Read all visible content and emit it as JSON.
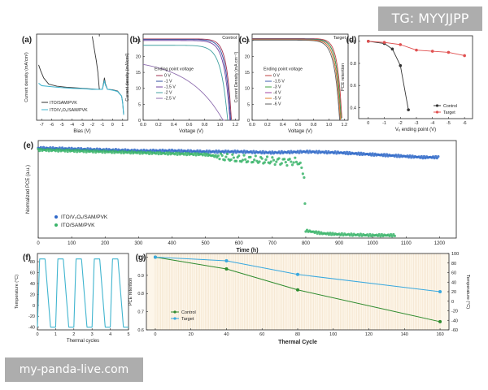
{
  "watermark": {
    "top": "TG: MYYJJPP",
    "bottom": "my-panda-live.com"
  },
  "colors": {
    "target": "#2f68c8",
    "control": "#3ab46a",
    "green_dark": "#2e8b2e",
    "blue_light": "#39a8df",
    "red": "#e05050",
    "dark": "#333333",
    "cycle": "#41b5cf"
  },
  "chart_data": [
    {
      "panel": "(a)",
      "type": "line",
      "xlabel": "Bias (V)",
      "ylabel": "Current density (mA/cm²)",
      "xticks": [
        "-7",
        "-6",
        "-5",
        "-4",
        "-3",
        "-2",
        "-1",
        "0",
        "1"
      ],
      "xlim": [
        -7.5,
        1.5
      ],
      "legend": [
        "ITO/SAM/PVK",
        "ITO/V₂Oₓ/SAM/PVK"
      ],
      "series": [
        {
          "name": "ITO/SAM/PVK",
          "points": [
            [
              -7.3,
              1.6
            ],
            [
              -7.1,
              1.1
            ],
            [
              -6.8,
              0.6
            ],
            [
              -6.3,
              0.28
            ],
            [
              -5.5,
              0.2
            ],
            [
              -4.5,
              0.16
            ],
            [
              -3.5,
              0.14
            ],
            [
              -2.5,
              0.12
            ],
            [
              -1.5,
              0.1
            ],
            [
              -1.0,
              0.1
            ],
            [
              -0.8,
              0.6
            ],
            [
              -0.7,
              0.3
            ],
            [
              -0.5,
              0.1
            ],
            [
              0.0,
              0.09
            ],
            [
              0.5,
              0.06
            ],
            [
              0.9,
              0.0
            ],
            [
              1.0,
              -0.6
            ],
            [
              1.1,
              -1.8
            ]
          ]
        },
        {
          "name": "ITO/V₂Oₓ/SAM/PVK",
          "points": [
            [
              -7.3,
              0.32
            ],
            [
              -7.0,
              0.22
            ],
            [
              -6.0,
              0.18
            ],
            [
              -5.0,
              0.15
            ],
            [
              -4.0,
              0.13
            ],
            [
              -3.0,
              0.12
            ],
            [
              -2.0,
              0.1
            ],
            [
              -1.0,
              0.1
            ],
            [
              -0.8,
              0.45
            ],
            [
              -0.7,
              0.25
            ],
            [
              -0.5,
              0.1
            ],
            [
              0.0,
              0.08
            ],
            [
              0.5,
              0.05
            ],
            [
              0.9,
              0.0
            ],
            [
              1.0,
              -0.6
            ],
            [
              1.1,
              -1.8
            ]
          ]
        },
        {
          "name": "",
          "points": [
            [
              -2.0,
              5.2
            ],
            [
              -1.75,
              3.0
            ],
            [
              -1.6,
              2.0
            ],
            [
              -1.45,
              1.0
            ],
            [
              -1.35,
              0.3
            ],
            [
              -1.3,
              0.1
            ]
          ]
        }
      ]
    },
    {
      "panel": "(b)",
      "type": "line",
      "title": "Control",
      "xlabel": "Voltage (V)",
      "ylabel": "Current density (mA/cm²)",
      "xticks": [
        "0.0",
        "0.2",
        "0.4",
        "0.6",
        "0.8",
        "1.0",
        "1.2"
      ],
      "yticks": [
        "0",
        "5",
        "10",
        "15",
        "20",
        "25"
      ],
      "xlim": [
        0,
        1.25
      ],
      "ylim": [
        0,
        27
      ],
      "legend_title": "Ending point voltage",
      "legend": [
        "0 V",
        "-1 V",
        "-1.5 V",
        "-2 V",
        "-2.5 V"
      ],
      "series": [
        {
          "name": "0 V",
          "color": "#a03050",
          "jsc": 25.5,
          "voc": 1.15,
          "sharp": 16
        },
        {
          "name": "-1 V",
          "color": "#3050a0",
          "jsc": 25.3,
          "voc": 1.14,
          "sharp": 15
        },
        {
          "name": "-1.5 V",
          "color": "#7040a0",
          "jsc": 25.0,
          "voc": 1.13,
          "sharp": 14
        },
        {
          "name": "-2 V",
          "color": "#40a0a0",
          "jsc": 23.5,
          "voc": 1.1,
          "sharp": 12
        },
        {
          "name": "-2.5 V",
          "color": "#9070b0",
          "jsc": 17.5,
          "voc": 1.04,
          "sharp": 2.2
        }
      ]
    },
    {
      "panel": "(c)",
      "type": "line",
      "title": "Target",
      "xlabel": "Voltage (V)",
      "ylabel": "Current Density (mA cm⁻²)",
      "xticks": [
        "0.0",
        "0.2",
        "0.4",
        "0.6",
        "0.8",
        "1.0",
        "1.2"
      ],
      "yticks": [
        "0",
        "5",
        "10",
        "15",
        "20",
        "25"
      ],
      "xlim": [
        0,
        1.25
      ],
      "ylim": [
        0,
        27
      ],
      "legend_title": "Ending point voltage",
      "legend": [
        "0 V",
        "-1.5 V",
        "-3 V",
        "-4 V",
        "-5 V",
        "-6 V"
      ],
      "series": [
        {
          "name": "0 V",
          "color": "#c04040",
          "jsc": 25.6,
          "voc": 1.17,
          "sharp": 18
        },
        {
          "name": "-1.5 V",
          "color": "#4060b0",
          "jsc": 25.5,
          "voc": 1.16,
          "sharp": 17
        },
        {
          "name": "-3 V",
          "color": "#40a040",
          "jsc": 25.4,
          "voc": 1.16,
          "sharp": 17
        },
        {
          "name": "-4 V",
          "color": "#a040a0",
          "jsc": 25.3,
          "voc": 1.15,
          "sharp": 16
        },
        {
          "name": "-5 V",
          "color": "#e08030",
          "jsc": 25.2,
          "voc": 1.15,
          "sharp": 16
        },
        {
          "name": "-6 V",
          "color": "#606060",
          "jsc": 25.1,
          "voc": 1.14,
          "sharp": 15
        }
      ]
    },
    {
      "panel": "(d)",
      "type": "line",
      "xlabel": "Vₑ ending point (V)",
      "ylabel": "PCE retention",
      "xticks": [
        "0",
        "-1",
        "-2",
        "-3",
        "-4",
        "-5",
        "-6"
      ],
      "yticks": [
        "0.4",
        "0.6",
        "0.8",
        "1.0"
      ],
      "xlim": [
        0.6,
        -6.5
      ],
      "ylim": [
        0.3,
        1.05
      ],
      "legend": [
        "Control",
        "Target"
      ],
      "series": [
        {
          "name": "Control",
          "color": "#333333",
          "x": [
            0,
            -1,
            -1.5,
            -2,
            -2.5
          ],
          "y": [
            1.0,
            0.98,
            0.93,
            0.78,
            0.38
          ]
        },
        {
          "name": "Target",
          "color": "#e05050",
          "x": [
            0,
            -1,
            -2,
            -3,
            -4,
            -5,
            -6
          ],
          "y": [
            1.0,
            0.99,
            0.97,
            0.92,
            0.91,
            0.9,
            0.87
          ]
        }
      ]
    },
    {
      "panel": "(e)",
      "type": "scatter",
      "xlabel": "Time (h)",
      "ylabel": "Normalized PCE (a.u.)",
      "xticks": [
        "0",
        "100",
        "200",
        "300",
        "400",
        "500",
        "600",
        "700",
        "800",
        "900",
        "1000",
        "1100",
        "1200"
      ],
      "xlim": [
        0,
        1250
      ],
      "ylim": [
        0,
        1.05
      ],
      "legend": [
        "ITO/V₂Oₓ/SAM/PVK",
        "ITO/SAM/PVK"
      ],
      "series": [
        {
          "name": "ITO/V₂Oₓ/SAM/PVK",
          "color": "#2f68c8",
          "points": [
            [
              0,
              0.97
            ],
            [
              100,
              0.96
            ],
            [
              200,
              0.95
            ],
            [
              300,
              0.94
            ],
            [
              400,
              0.94
            ],
            [
              500,
              0.93
            ],
            [
              600,
              0.93
            ],
            [
              700,
              0.92
            ],
            [
              800,
              0.93
            ],
            [
              900,
              0.92
            ],
            [
              950,
              0.91
            ],
            [
              1000,
              0.9
            ],
            [
              1050,
              0.89
            ],
            [
              1100,
              0.88
            ],
            [
              1150,
              0.87
            ],
            [
              1200,
              0.87
            ]
          ]
        },
        {
          "name": "ITO/SAM/PVK",
          "color": "#3ab46a",
          "points": [
            [
              0,
              0.95
            ],
            [
              100,
              0.94
            ],
            [
              200,
              0.93
            ],
            [
              300,
              0.92
            ],
            [
              400,
              0.91
            ],
            [
              500,
              0.9
            ],
            [
              550,
              0.87
            ],
            [
              600,
              0.85
            ],
            [
              650,
              0.84
            ],
            [
              700,
              0.83
            ],
            [
              780,
              0.82
            ],
            [
              795,
              0.65
            ],
            [
              800,
              0.08
            ],
            [
              850,
              0.05
            ],
            [
              900,
              0.04
            ],
            [
              1000,
              0.03
            ],
            [
              1070,
              0.03
            ]
          ]
        }
      ]
    },
    {
      "panel": "(f)",
      "type": "line",
      "xlabel": "Thermal cycles",
      "ylabel": "Temperature (°C)",
      "xticks": [
        "0",
        "1",
        "2",
        "3",
        "4",
        "5"
      ],
      "yticks": [
        "-40",
        "-20",
        "0",
        "20",
        "40",
        "60",
        "80"
      ],
      "xlim": [
        0,
        5
      ],
      "ylim": [
        -45,
        95
      ],
      "series": [
        {
          "name": "",
          "color": "#41b5cf",
          "cycles": 5,
          "min": -40,
          "max": 85
        }
      ]
    },
    {
      "panel": "(g)",
      "type": "line",
      "xlabel": "Thermal Cycle",
      "ylabel": "PCE retention",
      "y2label": "Temperature (°C)",
      "xticks": [
        "0",
        "20",
        "40",
        "60",
        "80",
        "100",
        "120",
        "140",
        "160"
      ],
      "yticks": [
        "0.6",
        "0.7",
        "0.8",
        "0.9",
        "1.0"
      ],
      "y2ticks": [
        "-60",
        "-40",
        "-20",
        "0",
        "20",
        "40",
        "60",
        "80",
        "100"
      ],
      "xlim": [
        -5,
        165
      ],
      "ylim": [
        0.6,
        1.02
      ],
      "y2lim": [
        -60,
        100
      ],
      "legend": [
        "Control",
        "Target"
      ],
      "series": [
        {
          "name": "Control",
          "color": "#2e8b2e",
          "x": [
            0,
            40,
            80,
            160
          ],
          "y": [
            1.0,
            0.935,
            0.82,
            0.645
          ]
        },
        {
          "name": "Target",
          "color": "#39a8df",
          "x": [
            0,
            40,
            80,
            160
          ],
          "y": [
            1.0,
            0.98,
            0.905,
            0.81
          ]
        }
      ]
    }
  ]
}
